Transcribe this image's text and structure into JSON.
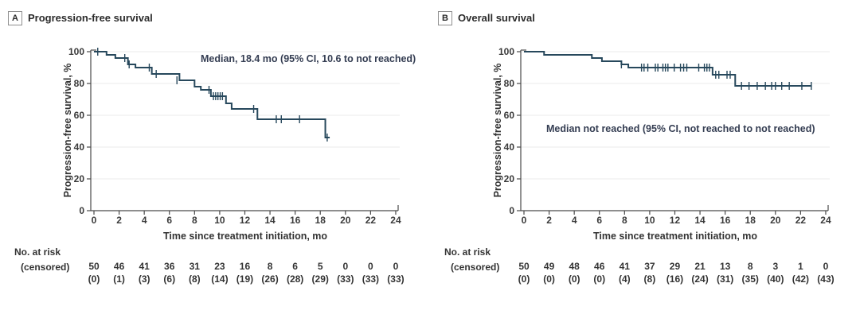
{
  "figure": {
    "panels": [
      {
        "letter": "A",
        "title": "Progression-free survival",
        "y_label": "Progression-free survival, %",
        "x_label": "Time since treatment initiation, mo",
        "annotation": "Median, 18.4 mo (95% CI, 10.6 to not reached)",
        "risk_label": "No. at risk",
        "censored_label": "(censored)"
      },
      {
        "letter": "B",
        "title": "Overall survival",
        "y_label": "Progression-free survival, %",
        "x_label": "Time since treatment initiation, mo",
        "annotation": "Median not reached (95% CI, not reached to not reached)",
        "risk_label": "No. at risk",
        "censored_label": "(censored)"
      }
    ]
  },
  "colors": {
    "curve": "#27485c",
    "axis": "#4a4a4a",
    "grid": "#ebebeb",
    "tick_text": "#3a3a3a"
  },
  "chart_data": [
    {
      "type": "line",
      "subtype": "kaplan-meier-step",
      "title": "Progression-free survival",
      "xlabel": "Time since treatment initiation, mo",
      "ylabel": "Progression-free survival, %",
      "annotation": "Median, 18.4 mo (95% CI, 10.6 to not reached)",
      "xlim": [
        0,
        24
      ],
      "ylim": [
        0,
        100
      ],
      "xticks": [
        0,
        2,
        4,
        6,
        8,
        10,
        12,
        14,
        16,
        18,
        20,
        22,
        24
      ],
      "yticks": [
        0,
        20,
        40,
        60,
        80,
        100
      ],
      "grid": true,
      "steps": [
        [
          0,
          100
        ],
        [
          1.0,
          98
        ],
        [
          1.7,
          96
        ],
        [
          2.7,
          92
        ],
        [
          3.3,
          90
        ],
        [
          4.6,
          86
        ],
        [
          6.8,
          82
        ],
        [
          8.0,
          78
        ],
        [
          8.5,
          76
        ],
        [
          9.3,
          72
        ],
        [
          10.5,
          67.5
        ],
        [
          10.95,
          64
        ],
        [
          13.0,
          57.5
        ],
        [
          18.4,
          46
        ]
      ],
      "curve_end_x": 18.75,
      "censor_marks": [
        [
          0.3,
          100
        ],
        [
          2.45,
          96
        ],
        [
          2.8,
          92
        ],
        [
          4.4,
          90
        ],
        [
          4.95,
          86
        ],
        [
          6.6,
          82
        ],
        [
          9.15,
          76
        ],
        [
          9.5,
          72
        ],
        [
          9.68,
          72
        ],
        [
          9.86,
          72
        ],
        [
          10.04,
          72
        ],
        [
          10.22,
          72
        ],
        [
          12.7,
          64
        ],
        [
          14.5,
          57.5
        ],
        [
          14.9,
          57.5
        ],
        [
          16.35,
          57.5
        ],
        [
          18.55,
          46
        ]
      ],
      "at_risk_table": {
        "months": [
          0,
          2,
          4,
          6,
          8,
          10,
          12,
          14,
          16,
          18,
          20,
          22,
          24
        ],
        "at_risk": [
          "50",
          "46",
          "41",
          "36",
          "31",
          "23",
          "16",
          "8",
          "6",
          "5",
          "0",
          "0",
          "0"
        ],
        "censored": [
          "(0)",
          "(1)",
          "(3)",
          "(6)",
          "(8)",
          "(14)",
          "(19)",
          "(26)",
          "(28)",
          "(29)",
          "(33)",
          "(33)",
          "(33)"
        ]
      }
    },
    {
      "type": "line",
      "subtype": "kaplan-meier-step",
      "title": "Overall survival",
      "xlabel": "Time since treatment initiation, mo",
      "ylabel": "Progression-free survival, %",
      "annotation": "Median not reached (95% CI, not reached to not reached)",
      "xlim": [
        0,
        24
      ],
      "ylim": [
        0,
        100
      ],
      "xticks": [
        0,
        2,
        4,
        6,
        8,
        10,
        12,
        14,
        16,
        18,
        20,
        22,
        24
      ],
      "yticks": [
        0,
        20,
        40,
        60,
        80,
        100
      ],
      "grid": true,
      "steps": [
        [
          0,
          100
        ],
        [
          1.6,
          98
        ],
        [
          5.4,
          96
        ],
        [
          6.2,
          94
        ],
        [
          7.75,
          92
        ],
        [
          8.3,
          90
        ],
        [
          15.0,
          85.5
        ],
        [
          16.8,
          78.5
        ]
      ],
      "curve_end_x": 22.9,
      "censor_marks": [
        [
          7.75,
          92
        ],
        [
          9.35,
          90
        ],
        [
          9.55,
          90
        ],
        [
          9.85,
          90
        ],
        [
          10.45,
          90
        ],
        [
          10.65,
          90
        ],
        [
          11.05,
          90
        ],
        [
          11.25,
          90
        ],
        [
          11.45,
          90
        ],
        [
          11.95,
          90
        ],
        [
          12.45,
          90
        ],
        [
          12.7,
          90
        ],
        [
          12.95,
          90
        ],
        [
          13.9,
          90
        ],
        [
          14.35,
          90
        ],
        [
          14.55,
          90
        ],
        [
          14.75,
          90
        ],
        [
          15.25,
          85.5
        ],
        [
          15.5,
          85.5
        ],
        [
          16.15,
          85.5
        ],
        [
          16.4,
          85.5
        ],
        [
          17.3,
          78.5
        ],
        [
          17.9,
          78.5
        ],
        [
          18.55,
          78.5
        ],
        [
          19.2,
          78.5
        ],
        [
          19.7,
          78.5
        ],
        [
          20.0,
          78.5
        ],
        [
          20.5,
          78.5
        ],
        [
          21.1,
          78.5
        ],
        [
          22.1,
          78.5
        ],
        [
          22.85,
          78.5
        ]
      ],
      "at_risk_table": {
        "months": [
          0,
          2,
          4,
          6,
          8,
          10,
          12,
          14,
          16,
          18,
          20,
          22,
          24
        ],
        "at_risk": [
          "50",
          "49",
          "48",
          "46",
          "41",
          "37",
          "29",
          "21",
          "13",
          "8",
          "3",
          "1",
          "0"
        ],
        "censored": [
          "(0)",
          "(0)",
          "(0)",
          "(0)",
          "(4)",
          "(8)",
          "(16)",
          "(24)",
          "(31)",
          "(35)",
          "(40)",
          "(42)",
          "(43)"
        ]
      }
    }
  ]
}
